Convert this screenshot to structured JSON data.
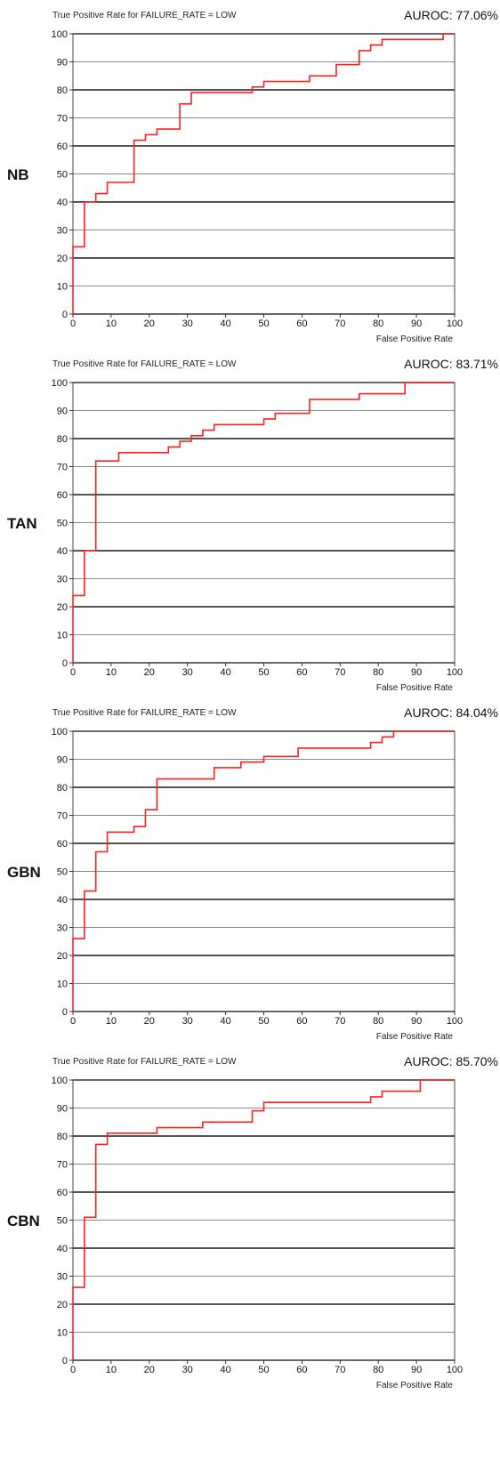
{
  "chart_data": [
    {
      "type": "line",
      "model": "NB",
      "title": "True Positive Rate for FAILURE_RATE = LOW",
      "auroc": "AUROC: 77.06%",
      "xlabel": "False Positive Rate",
      "ylabel": "",
      "xlim": [
        0,
        100
      ],
      "ylim": [
        0,
        100
      ],
      "x_ticks": [
        "0",
        "10",
        "20",
        "30",
        "40",
        "50",
        "60",
        "70",
        "80",
        "90",
        "100"
      ],
      "y_ticks": [
        "0",
        "10",
        "20",
        "30",
        "40",
        "50",
        "60",
        "70",
        "80",
        "90",
        "100"
      ],
      "grid": "horizontal",
      "series": [
        {
          "color": "#ff2020",
          "x": [
            0,
            0,
            3,
            3,
            6,
            6,
            9,
            9,
            16,
            16,
            19,
            19,
            22,
            22,
            28,
            28,
            31,
            31,
            47,
            47,
            50,
            50,
            62,
            62,
            69,
            69,
            75,
            75,
            78,
            78,
            81,
            81,
            97,
            97,
            100
          ],
          "y": [
            0,
            24,
            24,
            40,
            40,
            43,
            43,
            47,
            47,
            62,
            62,
            64,
            64,
            66,
            66,
            75,
            75,
            79,
            79,
            81,
            81,
            83,
            83,
            85,
            85,
            89,
            89,
            94,
            94,
            96,
            96,
            98,
            98,
            100,
            100
          ]
        }
      ]
    },
    {
      "type": "line",
      "model": "TAN",
      "title": "True Positive Rate for FAILURE_RATE = LOW",
      "auroc": "AUROC: 83.71%",
      "xlabel": "False Positive Rate",
      "ylabel": "",
      "xlim": [
        0,
        100
      ],
      "ylim": [
        0,
        100
      ],
      "x_ticks": [
        "0",
        "10",
        "20",
        "30",
        "40",
        "50",
        "60",
        "70",
        "80",
        "90",
        "100"
      ],
      "y_ticks": [
        "0",
        "10",
        "20",
        "30",
        "40",
        "50",
        "60",
        "70",
        "80",
        "90",
        "100"
      ],
      "grid": "horizontal",
      "series": [
        {
          "color": "#ff2020",
          "x": [
            0,
            0,
            3,
            3,
            6,
            6,
            12,
            12,
            25,
            25,
            28,
            28,
            31,
            31,
            34,
            34,
            37,
            37,
            50,
            50,
            53,
            53,
            62,
            62,
            75,
            75,
            87,
            87,
            100
          ],
          "y": [
            0,
            24,
            24,
            40,
            40,
            72,
            72,
            75,
            75,
            77,
            77,
            79,
            79,
            81,
            81,
            83,
            83,
            85,
            85,
            87,
            87,
            89,
            89,
            94,
            94,
            96,
            96,
            100,
            100
          ]
        }
      ]
    },
    {
      "type": "line",
      "model": "GBN",
      "title": "True Positive Rate for FAILURE_RATE = LOW",
      "auroc": "AUROC: 84.04%",
      "xlabel": "False Positive Rate",
      "ylabel": "",
      "xlim": [
        0,
        100
      ],
      "ylim": [
        0,
        100
      ],
      "x_ticks": [
        "0",
        "10",
        "20",
        "30",
        "40",
        "50",
        "60",
        "70",
        "80",
        "90",
        "100"
      ],
      "y_ticks": [
        "0",
        "10",
        "20",
        "30",
        "40",
        "50",
        "60",
        "70",
        "80",
        "90",
        "100"
      ],
      "grid": "horizontal",
      "series": [
        {
          "color": "#ff2020",
          "x": [
            0,
            0,
            3,
            3,
            6,
            6,
            9,
            9,
            16,
            16,
            19,
            19,
            22,
            22,
            37,
            37,
            44,
            44,
            50,
            50,
            59,
            59,
            78,
            78,
            81,
            81,
            84,
            84,
            100
          ],
          "y": [
            0,
            26,
            26,
            43,
            43,
            57,
            57,
            64,
            64,
            66,
            66,
            72,
            72,
            83,
            83,
            87,
            87,
            89,
            89,
            91,
            91,
            94,
            94,
            96,
            96,
            98,
            98,
            100,
            100
          ]
        }
      ]
    },
    {
      "type": "line",
      "model": "CBN",
      "title": "True Positive Rate for FAILURE_RATE = LOW",
      "auroc": "AUROC: 85.70%",
      "xlabel": "False Positive Rate",
      "ylabel": "",
      "xlim": [
        0,
        100
      ],
      "ylim": [
        0,
        100
      ],
      "x_ticks": [
        "0",
        "10",
        "20",
        "30",
        "40",
        "50",
        "60",
        "70",
        "80",
        "90",
        "100"
      ],
      "y_ticks": [
        "0",
        "10",
        "20",
        "30",
        "40",
        "50",
        "60",
        "70",
        "80",
        "90",
        "100"
      ],
      "grid": "horizontal",
      "series": [
        {
          "color": "#ff2020",
          "x": [
            0,
            0,
            3,
            3,
            6,
            6,
            9,
            9,
            22,
            22,
            34,
            34,
            47,
            47,
            50,
            50,
            78,
            78,
            81,
            81,
            91,
            91,
            100
          ],
          "y": [
            0,
            26,
            26,
            51,
            51,
            77,
            77,
            81,
            81,
            83,
            83,
            85,
            85,
            89,
            89,
            92,
            92,
            94,
            94,
            96,
            96,
            100,
            100
          ]
        }
      ]
    }
  ]
}
